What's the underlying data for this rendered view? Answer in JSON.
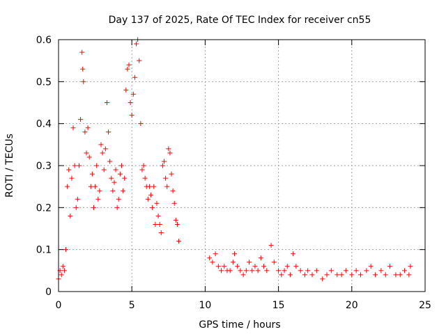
{
  "chart_data": {
    "type": "scatter",
    "title": "Day 137 of 2025, Rate Of TEC Index for receiver cn55",
    "xlabel": "GPS time / hours",
    "ylabel": "ROTI / TECUs",
    "xlim": [
      0,
      25
    ],
    "ylim": [
      0,
      0.6
    ],
    "xticks": [
      0,
      5,
      10,
      15,
      20,
      25
    ],
    "yticks": [
      0,
      0.1,
      0.2,
      0.3,
      0.4,
      0.5,
      0.6
    ],
    "xtick_labels": [
      "0",
      "5",
      "10",
      "15",
      "20",
      "25"
    ],
    "ytick_labels": [
      "0",
      "0.1",
      "0.2",
      "0.3",
      "0.4",
      "0.5",
      "0.6"
    ],
    "grid": true,
    "marker": "+",
    "color": "#ff0000",
    "series": [
      {
        "name": "ROTI",
        "x": [
          0.0,
          0.1,
          0.2,
          0.3,
          0.4,
          0.5,
          0.6,
          0.7,
          0.8,
          0.9,
          1.0,
          1.1,
          1.2,
          1.3,
          1.4,
          1.5,
          1.6,
          1.65,
          1.7,
          1.8,
          1.9,
          2.0,
          2.1,
          2.2,
          2.3,
          2.4,
          2.5,
          2.6,
          2.7,
          2.8,
          2.9,
          3.0,
          3.1,
          3.2,
          3.3,
          3.4,
          3.5,
          3.6,
          3.7,
          3.8,
          3.9,
          4.0,
          4.1,
          4.2,
          4.3,
          4.4,
          4.5,
          4.6,
          4.7,
          4.8,
          4.9,
          5.0,
          5.1,
          5.2,
          5.3,
          5.4,
          5.5,
          5.6,
          5.7,
          5.8,
          5.9,
          6.0,
          6.1,
          6.2,
          6.3,
          6.4,
          6.5,
          6.6,
          6.7,
          6.8,
          6.9,
          7.0,
          7.1,
          7.2,
          7.3,
          7.4,
          7.5,
          7.6,
          7.7,
          7.8,
          7.9,
          8.0,
          8.1,
          8.2,
          10.3,
          10.5,
          10.7,
          10.9,
          11.1,
          11.3,
          11.5,
          11.7,
          11.9,
          12.0,
          12.2,
          12.4,
          12.6,
          12.8,
          13.0,
          13.2,
          13.4,
          13.6,
          13.8,
          14.0,
          14.2,
          14.5,
          14.7,
          15.0,
          15.2,
          15.4,
          15.6,
          15.8,
          16.0,
          16.2,
          16.5,
          16.8,
          17.0,
          17.3,
          17.6,
          18.0,
          18.3,
          18.6,
          19.0,
          19.3,
          19.6,
          20.0,
          20.3,
          20.6,
          21.0,
          21.3,
          21.6,
          22.0,
          22.3,
          22.6,
          23.0,
          23.3,
          23.6,
          23.9,
          24.0
        ],
        "y": [
          0.03,
          0.05,
          0.04,
          0.06,
          0.05,
          0.1,
          0.25,
          0.29,
          0.18,
          0.27,
          0.39,
          0.3,
          0.2,
          0.22,
          0.3,
          0.41,
          0.57,
          0.53,
          0.5,
          0.38,
          0.33,
          0.39,
          0.32,
          0.25,
          0.28,
          0.2,
          0.25,
          0.3,
          0.22,
          0.24,
          0.35,
          0.33,
          0.29,
          0.34,
          0.45,
          0.38,
          0.31,
          0.27,
          0.24,
          0.26,
          0.29,
          0.2,
          0.22,
          0.28,
          0.3,
          0.24,
          0.27,
          0.48,
          0.53,
          0.54,
          0.45,
          0.42,
          0.47,
          0.51,
          0.59,
          0.6,
          0.55,
          0.4,
          0.29,
          0.3,
          0.27,
          0.25,
          0.22,
          0.25,
          0.23,
          0.2,
          0.25,
          0.16,
          0.21,
          0.18,
          0.16,
          0.14,
          0.3,
          0.31,
          0.27,
          0.25,
          0.34,
          0.33,
          0.28,
          0.24,
          0.21,
          0.17,
          0.16,
          0.12,
          0.08,
          0.07,
          0.09,
          0.06,
          0.05,
          0.06,
          0.05,
          0.05,
          0.07,
          0.09,
          0.06,
          0.05,
          0.04,
          0.05,
          0.07,
          0.05,
          0.06,
          0.05,
          0.08,
          0.06,
          0.05,
          0.11,
          0.07,
          0.05,
          0.04,
          0.05,
          0.06,
          0.04,
          0.09,
          0.06,
          0.05,
          0.04,
          0.05,
          0.04,
          0.05,
          0.03,
          0.04,
          0.05,
          0.04,
          0.04,
          0.05,
          0.04,
          0.05,
          0.04,
          0.05,
          0.06,
          0.04,
          0.05,
          0.04,
          0.06,
          0.04,
          0.04,
          0.05,
          0.04,
          0.06
        ]
      }
    ]
  }
}
